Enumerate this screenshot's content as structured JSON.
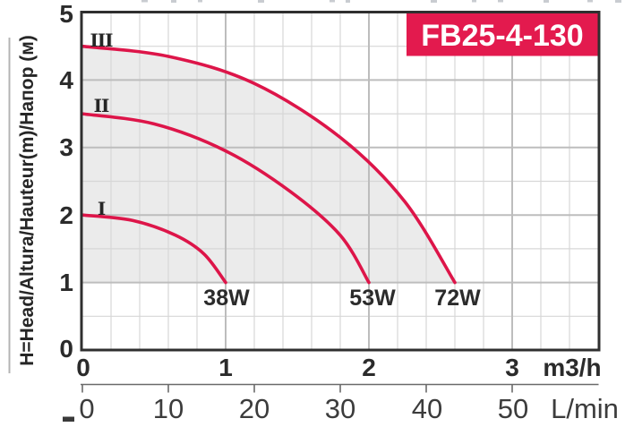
{
  "figure": {
    "model_badge": "FB25-4-130",
    "badge_color": "#e31a4e",
    "curve_color": "#dd1549",
    "shade_color": "#ebebeb",
    "border_color": "#2f2f2f",
    "grid_minor_color": "#d7d7d7",
    "grid_major_color": "#bdbdbd"
  },
  "chart_data": {
    "type": "line",
    "title": "Pump performance curves FB25-4-130 (head vs flow, speeds I/II/III)",
    "grid": true,
    "legend_position": "curve-start (speed) and curve-end (power)",
    "y_axis": {
      "label": "H=Head/Altura/Hauteur(m)/Напор (м)",
      "range": [
        0,
        5
      ],
      "minor_step": 0.5,
      "ticks": [
        0,
        1,
        2,
        3,
        4,
        5
      ],
      "tick_labels": [
        "5",
        "4",
        "3",
        "2",
        "1",
        "0"
      ]
    },
    "x_axis_primary": {
      "unit": "m3/h",
      "range": [
        0,
        3.6
      ],
      "minor_step": 0.2,
      "ticks": [
        0,
        1,
        2,
        3
      ],
      "tick_labels": [
        "0",
        "1",
        "2",
        "3"
      ]
    },
    "x_axis_secondary": {
      "unit": "L/min",
      "range": [
        0,
        60
      ],
      "ticks": [
        0,
        10,
        20,
        30,
        40,
        50
      ],
      "tick_labels": [
        "0",
        "10",
        "20",
        "30",
        "40",
        "50"
      ]
    },
    "series": [
      {
        "name": "I",
        "power": "38W",
        "start": [
          0,
          2.0
        ],
        "end": [
          1.0,
          1.0
        ],
        "points": [
          [
            0,
            2.0
          ],
          [
            0.35,
            1.92
          ],
          [
            0.65,
            1.7
          ],
          [
            0.85,
            1.42
          ],
          [
            1.0,
            1.0
          ]
        ]
      },
      {
        "name": "II",
        "power": "53W",
        "start": [
          0,
          3.5
        ],
        "end": [
          2.0,
          1.0
        ],
        "points": [
          [
            0,
            3.5
          ],
          [
            0.5,
            3.35
          ],
          [
            1.0,
            2.95
          ],
          [
            1.45,
            2.35
          ],
          [
            1.8,
            1.7
          ],
          [
            2.0,
            1.0
          ]
        ]
      },
      {
        "name": "III",
        "power": "72W",
        "start": [
          0,
          4.5
        ],
        "end": [
          2.6,
          1.0
        ],
        "points": [
          [
            0,
            4.5
          ],
          [
            0.6,
            4.35
          ],
          [
            1.2,
            3.95
          ],
          [
            1.8,
            3.15
          ],
          [
            2.25,
            2.2
          ],
          [
            2.6,
            1.0
          ]
        ]
      }
    ],
    "shaded_region": "area under curve III, above H = 1 m"
  }
}
